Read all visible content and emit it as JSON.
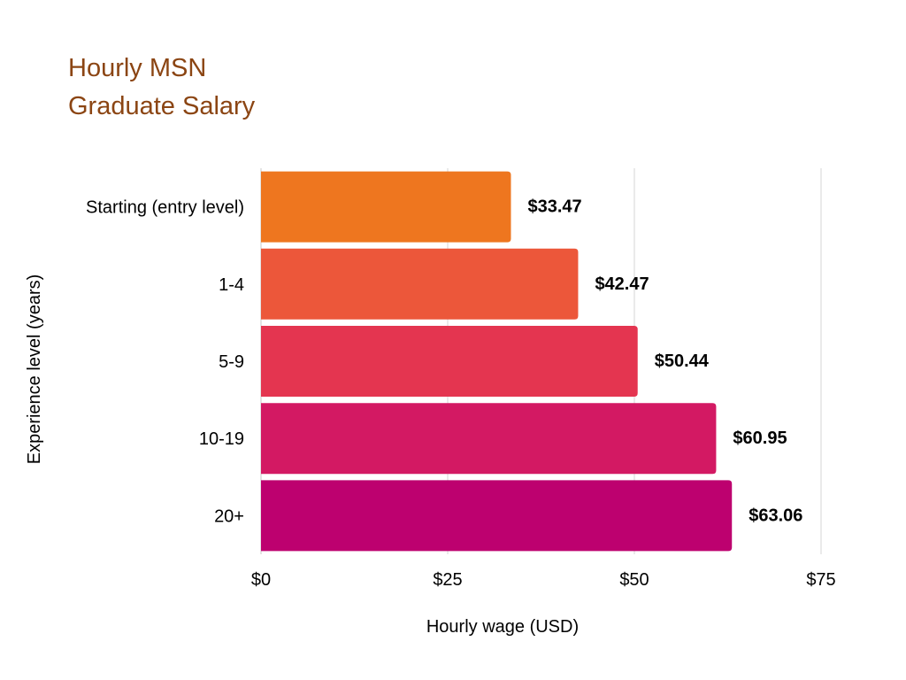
{
  "chart_data": {
    "type": "bar",
    "orientation": "horizontal",
    "title_lines": [
      "Hourly MSN",
      "Graduate Salary"
    ],
    "categories": [
      "Starting (entry level)",
      "1-4",
      "5-9",
      "10-19",
      "20+"
    ],
    "values": [
      33.47,
      42.47,
      50.44,
      60.95,
      63.06
    ],
    "data_labels": [
      "$33.47",
      "$42.47",
      "$50.44",
      "$60.95",
      "$63.06"
    ],
    "bar_colors": [
      "#ee761f",
      "#ec573a",
      "#e43550",
      "#d31963",
      "#bd016f"
    ],
    "xlabel": "Hourly wage (USD)",
    "ylabel": "Experience level (years)",
    "xlim": [
      0,
      75
    ],
    "x_ticks": [
      0,
      25,
      50,
      75
    ],
    "x_tick_labels": [
      "$0",
      "$25",
      "$50",
      "$75"
    ],
    "grid": "vertical",
    "legend": "none"
  }
}
